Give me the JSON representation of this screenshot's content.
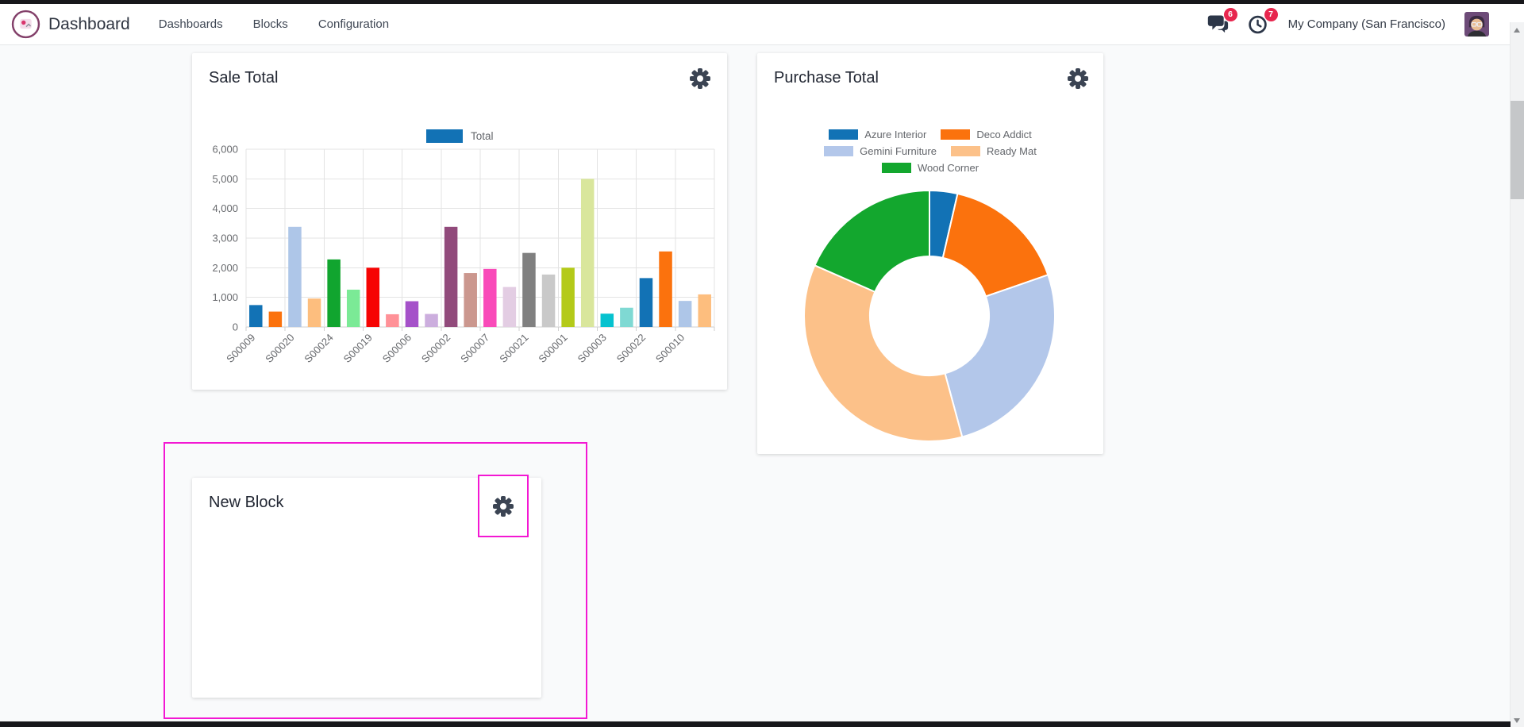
{
  "topbar": {
    "brand": "Dashboard",
    "menu": [
      {
        "label": "Dashboards"
      },
      {
        "label": "Blocks"
      },
      {
        "label": "Configuration"
      }
    ],
    "messages_badge": "6",
    "activities_badge": "7",
    "company": "My Company (San Francisco)"
  },
  "cards": {
    "sale": {
      "title": "Sale Total"
    },
    "purchase": {
      "title": "Purchase Total"
    },
    "new_block": {
      "title": "New Block"
    }
  },
  "colors": {
    "selection": "#f318d3",
    "badge": "#e7264e",
    "icon": "#3b4453",
    "grid": "#e3e3e3",
    "tick_text": "#67696d"
  },
  "chart_data": [
    {
      "type": "bar",
      "title": "Sale Total",
      "legend": [
        {
          "label": "Total",
          "color": "#1272b5"
        }
      ],
      "legend_position": "top",
      "x_tick_labels": [
        "S00009",
        "S00020",
        "S00024",
        "S00019",
        "S00006",
        "S00002",
        "S00007",
        "S00021",
        "S00001",
        "S00003",
        "S00022",
        "S00010"
      ],
      "values": [
        740,
        520,
        3380,
        960,
        2280,
        1260,
        2000,
        430,
        870,
        440,
        3380,
        1820,
        1960,
        1350,
        2500,
        1770,
        2000,
        5000,
        450,
        650,
        1650,
        2550,
        880,
        1100
      ],
      "bar_colors": [
        "#1272b5",
        "#fb720d",
        "#aec6e8",
        "#fdbe7e",
        "#11a52f",
        "#7bea96",
        "#f60403",
        "#ff9197",
        "#a551c9",
        "#ccaede",
        "#914a7b",
        "#cb978e",
        "#f94ab9",
        "#e3cde3",
        "#808080",
        "#c9c9c9",
        "#b4ca19",
        "#d9e69c",
        "#06c2cf",
        "#7fd9d3",
        "#1272b5",
        "#fb720d",
        "#aec6e8",
        "#fdbe7e"
      ],
      "ylim": [
        0,
        6000
      ],
      "y_ticks": [
        0,
        1000,
        2000,
        3000,
        4000,
        5000,
        6000
      ],
      "grid": true
    },
    {
      "type": "pie",
      "title": "Purchase Total",
      "labels": [
        "Azure Interior",
        "Deco Addict",
        "Gemini Furniture",
        "Ready Mat",
        "Wood Corner"
      ],
      "values_pct": [
        3.6,
        16.1,
        26.1,
        35.8,
        18.4
      ],
      "colors": [
        "#1272b5",
        "#fb720d",
        "#b3c7ea",
        "#fcc189",
        "#13a72e"
      ],
      "donut_hole_ratio": 0.475,
      "legend_position": "top"
    }
  ]
}
